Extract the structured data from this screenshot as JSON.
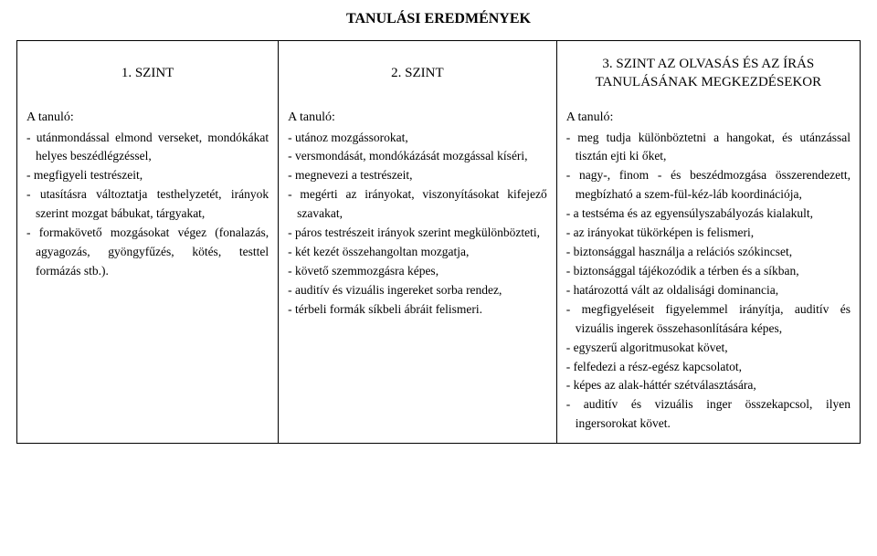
{
  "title": "TANULÁSI EREDMÉNYEK",
  "columns": {
    "c1": {
      "header": "1. SZINT",
      "sub": "A tanuló:"
    },
    "c2": {
      "header": "2. SZINT",
      "sub": "A tanuló:"
    },
    "c3": {
      "header": "3. SZINT\nAZ OLVASÁS ÉS AZ ÍRÁS TANULÁSÁNAK MEGKEZDÉSEKOR",
      "sub": "A tanuló:"
    }
  },
  "items": {
    "c1": [
      "- utánmondással elmond verseket, mondókákat helyes beszédlégzéssel,",
      "- megfigyeli testrészeit,",
      "- utasításra változtatja testhelyzetét, irányok szerint mozgat bábukat, tárgyakat,",
      "- formakövető mozgásokat végez (fonalazás, agyagozás, gyöngyfűzés, kötés, testtel formázás stb.)."
    ],
    "c2": [
      "- utánoz mozgássorokat,",
      "- versmondását, mondókázását mozgással kíséri,",
      "- megnevezi a testrészeit,",
      "- megérti az irányokat, viszonyításokat kifejező szavakat,",
      "- páros testrészeit irányok szerint megkülönbözteti,",
      "- két kezét összehangoltan mozgatja,",
      "- követő szemmozgásra képes,",
      "- auditív és vizuális ingereket sorba rendez,",
      "- térbeli formák síkbeli ábráit felismeri."
    ],
    "c3": [
      "- meg tudja különböztetni a hangokat, és utánzással tisztán ejti ki őket,",
      "- nagy-, finom - és beszédmozgása összerendezett, megbízható a szem-fül-kéz-láb koordinációja,",
      "- a testséma és az egyensúlyszabályozás kialakult,",
      "- az irányokat tükörképen is felismeri,",
      "- biztonsággal használja a relációs szókincset,",
      "- biztonsággal tájékozódik a térben és a síkban,",
      "- határozottá vált az oldalisági dominancia,",
      "- megfigyeléseit figyelemmel irányítja, auditív és vizuális ingerek összehasonlítására képes,",
      "- egyszerű algoritmusokat követ,",
      "- felfedezi a rész-egész kapcsolatot,",
      "- képes az alak-háttér szétválasztására,",
      "- auditív és vizuális inger összekapcsol, ilyen ingersorokat követ."
    ]
  }
}
